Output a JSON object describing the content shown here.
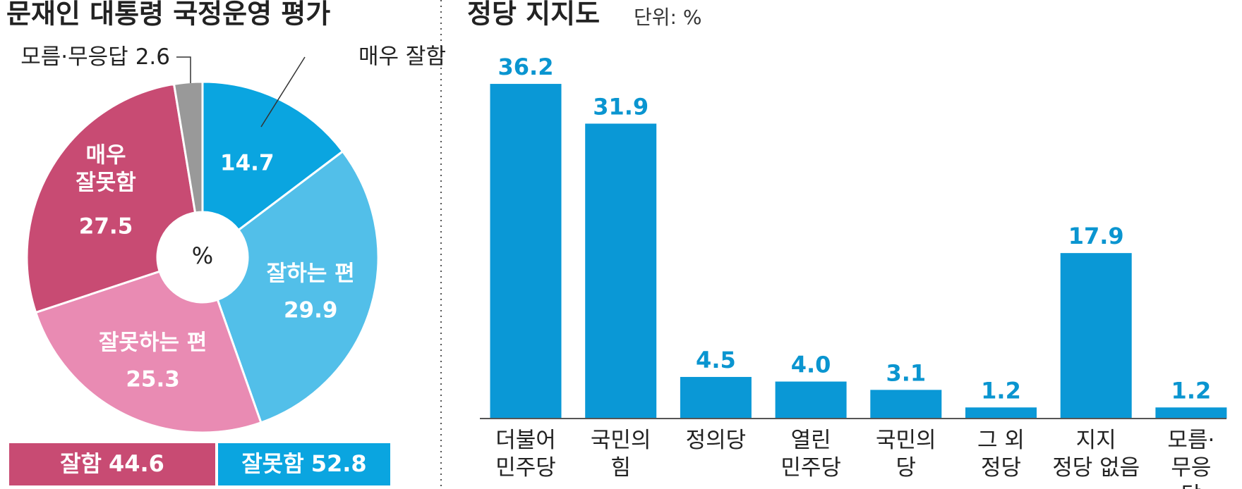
{
  "chart_data": [
    {
      "type": "pie",
      "title": "문재인 대통령 국정운영 평가",
      "center_label": "%",
      "categories": [
        "매우 잘함",
        "잘하는 편",
        "잘못하는 편",
        "매우\n잘못함",
        "모름·무응답"
      ],
      "values": [
        14.7,
        29.9,
        25.3,
        27.5,
        2.6
      ],
      "colors": [
        "#0aa5e0",
        "#52bfe9",
        "#e98bb3",
        "#c84b73",
        "#999999"
      ],
      "summary": [
        {
          "label": "잘함",
          "value": 44.6,
          "color": "#c84b73"
        },
        {
          "label": "잘못함",
          "value": 52.8,
          "color": "#0aa5e0"
        }
      ]
    },
    {
      "type": "bar",
      "title": "정당 지지도",
      "subtitle": "단위: %",
      "categories": [
        "더불어\n민주당",
        "국민의\n힘",
        "정의당",
        "열린\n민주당",
        "국민의\n당",
        "그 외\n정당",
        "지지\n정당 없음",
        "모름·\n무응답"
      ],
      "values": [
        36.2,
        31.9,
        4.5,
        4.0,
        3.1,
        1.2,
        17.9,
        1.2
      ],
      "value_labels": [
        "36.2",
        "31.9",
        "4.5",
        "4.0",
        "3.1",
        "1.2",
        "17.9",
        "1.2"
      ],
      "color": "#0a98d6",
      "ylim": [
        0,
        40
      ]
    }
  ]
}
